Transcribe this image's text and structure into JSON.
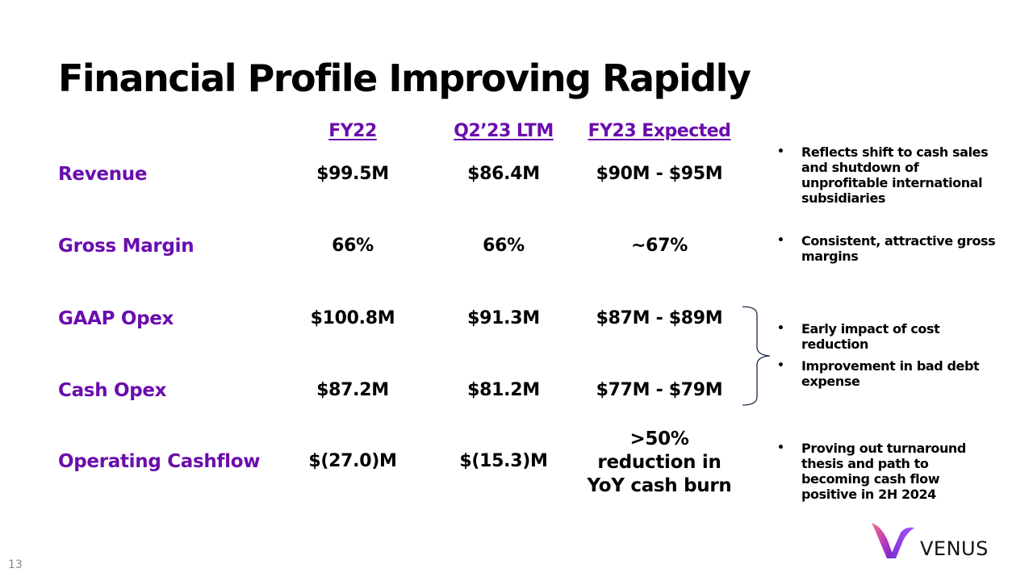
{
  "slide": {
    "title": "Financial Profile Improving Rapidly",
    "page_number": "13"
  },
  "columns": [
    "FY22",
    "Q2’23 LTM",
    "FY23 Expected"
  ],
  "rows": [
    {
      "label": "Revenue",
      "values": [
        "$99.5M",
        "$86.4M",
        "$90M - $95M"
      ]
    },
    {
      "label": "Gross Margin",
      "values": [
        "66%",
        "66%",
        "~67%"
      ]
    },
    {
      "label": "GAAP Opex",
      "values": [
        "$100.8M",
        "$91.3M",
        "$87M - $89M"
      ]
    },
    {
      "label": "Cash Opex",
      "values": [
        "$87.2M",
        "$81.2M",
        "$77M - $79M"
      ]
    },
    {
      "label": "Operating Cashflow",
      "values": [
        "$(27.0)M",
        "$(15.3)M",
        ">50% reduction in YoY cash burn"
      ]
    }
  ],
  "notes": [
    "Reflects shift to cash sales and shutdown of unprofitable international subsidiaries",
    "Consistent, attractive gross margins",
    "Early impact of cost reduction",
    "Improvement in bad debt expense",
    "Proving out turnaround thesis and path to becoming cash flow positive in 2H 2024"
  ],
  "bullet_glyph": "•",
  "logo": {
    "text": "VENUS",
    "icon": "venus-v-logo-icon"
  },
  "colors": {
    "accent_purple": "#6a0dad",
    "text": "#000000",
    "brace": "#1f2d4d"
  }
}
